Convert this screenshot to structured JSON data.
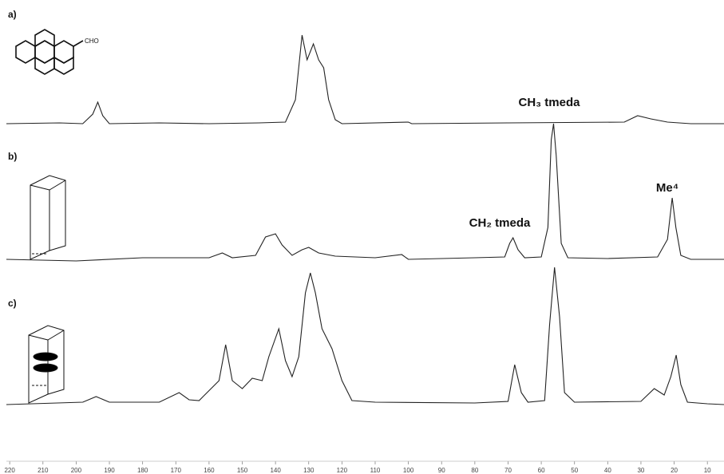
{
  "chart_data": {
    "type": "line",
    "structure_label": "CHO",
    "xlim": [
      221,
      5
    ],
    "xticks": [
      220,
      210,
      200,
      190,
      180,
      170,
      160,
      150,
      140,
      130,
      120,
      110,
      100,
      90,
      80,
      70,
      60,
      50,
      40,
      30,
      20,
      10
    ],
    "series": [
      {
        "name": "a)",
        "color": "#222222",
        "x": [
          221,
          205,
          198,
          195,
          193.5,
          192,
          190,
          175,
          160,
          145,
          137,
          134,
          132,
          130.5,
          128.6,
          127,
          125.5,
          124,
          122,
          120,
          100,
          99,
          70,
          35,
          31,
          27,
          22,
          15,
          5
        ],
        "values": [
          0,
          1,
          0,
          12,
          27,
          10,
          0,
          1,
          0,
          1,
          2,
          30,
          111,
          80,
          100,
          80,
          70,
          30,
          5,
          0,
          2,
          0,
          1,
          2,
          10,
          6,
          2,
          0,
          0
        ]
      },
      {
        "name": "b)",
        "color": "#222222",
        "x": [
          221,
          200,
          180,
          160,
          156,
          153,
          146,
          143,
          140,
          138,
          135,
          132,
          130,
          127,
          122,
          110,
          102,
          100,
          80,
          71,
          69.5,
          68.5,
          67,
          65,
          60,
          58,
          57,
          56.3,
          55.5,
          54,
          52,
          40,
          25,
          22,
          20.6,
          19.5,
          18,
          15,
          5
        ],
        "values": [
          0,
          -2,
          2,
          2,
          8,
          2,
          5,
          28,
          32,
          18,
          5,
          12,
          15,
          8,
          4,
          2,
          6,
          0,
          2,
          3,
          20,
          27,
          12,
          2,
          3,
          40,
          150,
          170,
          130,
          20,
          2,
          1,
          3,
          25,
          77,
          40,
          5,
          0,
          0
        ]
      },
      {
        "name": "c)",
        "color": "#222222",
        "x": [
          221,
          198,
          194,
          190,
          175,
          169,
          166,
          163,
          157,
          155,
          153,
          150,
          147,
          144,
          142,
          139,
          137,
          135,
          133,
          131,
          129.5,
          128,
          126,
          123,
          120,
          117,
          110,
          80,
          70,
          68,
          66,
          64,
          59,
          57.5,
          56,
          54.5,
          53,
          50,
          30,
          26,
          23,
          21,
          19.4,
          18,
          16,
          10,
          5
        ],
        "values": [
          0,
          3,
          10,
          3,
          3,
          15,
          6,
          5,
          30,
          75,
          30,
          20,
          33,
          30,
          60,
          95,
          55,
          35,
          60,
          140,
          165,
          140,
          95,
          70,
          30,
          5,
          3,
          2,
          4,
          50,
          15,
          3,
          5,
          100,
          172,
          110,
          15,
          3,
          4,
          20,
          12,
          35,
          62,
          25,
          3,
          1,
          0
        ]
      }
    ],
    "annotations": [
      "CH₃ tmeda",
      "CH₂ tmeda",
      "Me⁴"
    ]
  }
}
